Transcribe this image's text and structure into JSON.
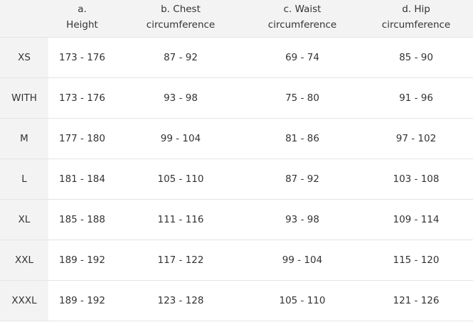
{
  "table": {
    "header": [
      [],
      [
        "a.",
        "Height"
      ],
      [
        "b. Chest",
        "circumference"
      ],
      [
        "c. Waist",
        "circumference"
      ],
      [
        "d. Hip",
        "circumference"
      ]
    ],
    "rows": [
      [
        "XS",
        "173 - 176",
        "87 - 92",
        "69 - 74",
        "85 - 90"
      ],
      [
        "WITH",
        "173 - 176",
        "93 - 98",
        "75 - 80",
        "91 - 96"
      ],
      [
        "M",
        "177 - 180",
        "99 - 104",
        "81 - 86",
        "97 - 102"
      ],
      [
        "L",
        "181 - 184",
        "105 - 110",
        "87 - 92",
        "103 - 108"
      ],
      [
        "XL",
        "185 - 188",
        "111 - 116",
        "93 - 98",
        "109 - 114"
      ],
      [
        "XXL",
        "189 - 192",
        "117 - 122",
        "99 - 104",
        "115 - 120"
      ],
      [
        "XXXL",
        "189 - 192",
        "123 - 128",
        "105 - 110",
        "121 - 126"
      ]
    ]
  }
}
